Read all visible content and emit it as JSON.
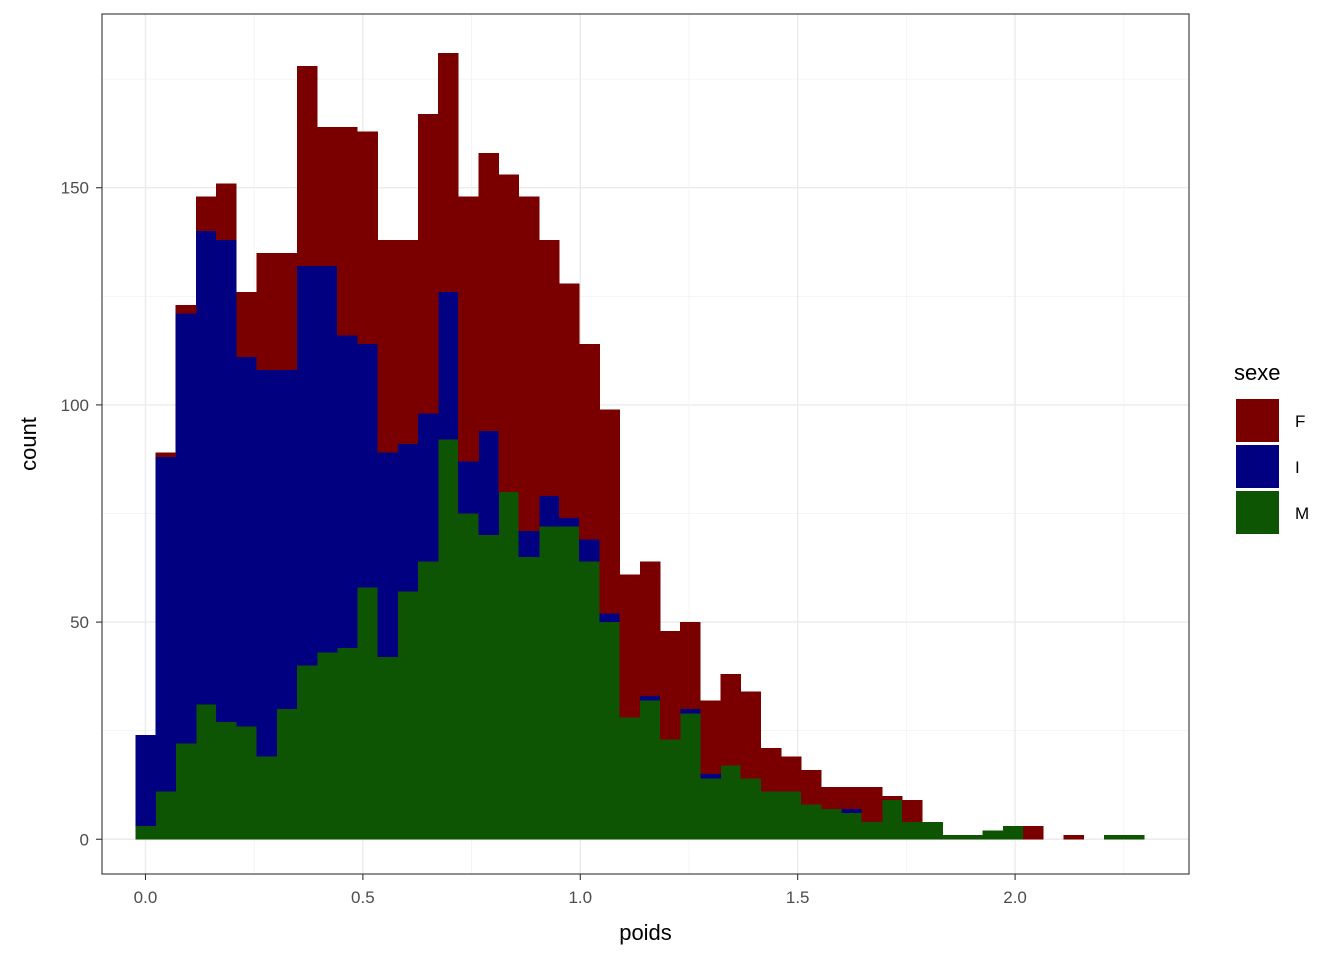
{
  "chart_data": {
    "type": "bar",
    "subtype": "stacked-histogram",
    "xlabel": "poids",
    "ylabel": "count",
    "xlim": [
      -0.1,
      2.4
    ],
    "ylim": [
      -8,
      190
    ],
    "x_ticks": [
      0.0,
      0.5,
      1.0,
      1.5,
      2.0
    ],
    "x_tick_labels": [
      "0.0",
      "0.5",
      "1.0",
      "1.5",
      "2.0"
    ],
    "y_ticks": [
      0,
      50,
      100,
      150
    ],
    "y_tick_labels": [
      "0",
      "50",
      "100",
      "150"
    ],
    "grid": true,
    "bin_width": 0.0464,
    "bin_centers": [
      0.0,
      0.0464,
      0.0928,
      0.1392,
      0.1856,
      0.232,
      0.2784,
      0.3248,
      0.3712,
      0.4176,
      0.464,
      0.5104,
      0.5568,
      0.6032,
      0.6496,
      0.696,
      0.7424,
      0.7888,
      0.8352,
      0.8816,
      0.928,
      0.9744,
      1.0208,
      1.0672,
      1.1136,
      1.16,
      1.2064,
      1.2528,
      1.2992,
      1.3456,
      1.392,
      1.4384,
      1.4848,
      1.5312,
      1.5776,
      1.624,
      1.6704,
      1.7168,
      1.7632,
      1.8096,
      1.856,
      1.9024,
      1.9488,
      1.9952,
      2.0416,
      2.088,
      2.1344,
      2.1808,
      2.2272,
      2.2736
    ],
    "legend": {
      "title": "sexe",
      "position": "right"
    },
    "series": [
      {
        "name": "M",
        "color": "#0d5502",
        "values": [
          3,
          11,
          22,
          31,
          27,
          26,
          19,
          30,
          40,
          43,
          44,
          58,
          42,
          57,
          64,
          92,
          75,
          70,
          80,
          65,
          72,
          72,
          64,
          50,
          28,
          32,
          23,
          29,
          14,
          17,
          14,
          11,
          11,
          8,
          7,
          6,
          4,
          9,
          4,
          4,
          1,
          1,
          2,
          3,
          0,
          0,
          0,
          0,
          1,
          1
        ]
      },
      {
        "name": "I",
        "color": "#000080",
        "values": [
          21,
          77,
          99,
          109,
          111,
          85,
          89,
          78,
          92,
          89,
          72,
          56,
          47,
          34,
          34,
          34,
          12,
          24,
          0,
          6,
          7,
          2,
          5,
          2,
          0,
          1,
          0,
          1,
          1,
          0,
          0,
          0,
          0,
          0,
          0,
          1,
          0,
          0,
          0,
          0,
          0,
          0,
          0,
          0,
          0,
          0,
          0,
          0,
          0,
          0
        ]
      },
      {
        "name": "F",
        "color": "#7a0000",
        "values": [
          0,
          1,
          2,
          8,
          13,
          15,
          27,
          27,
          46,
          32,
          48,
          49,
          49,
          47,
          69,
          55,
          61,
          64,
          73,
          77,
          59,
          54,
          45,
          47,
          33,
          31,
          25,
          20,
          17,
          21,
          20,
          10,
          8,
          8,
          5,
          5,
          8,
          1,
          5,
          0,
          0,
          0,
          0,
          0,
          3,
          0,
          1,
          0,
          0,
          0
        ]
      }
    ]
  }
}
